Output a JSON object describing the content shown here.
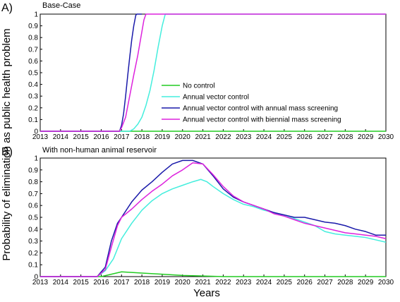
{
  "figure": {
    "ylabel": "Probability of elimination as public health problem",
    "xlabel": "Years"
  },
  "chart_data": [
    {
      "type": "line",
      "panel_label": "A)",
      "title": "Base-Case",
      "xlim": [
        2013,
        2030
      ],
      "ylim": [
        0,
        1
      ],
      "x_ticks": [
        "2013",
        "2014",
        "2015",
        "2016",
        "2017",
        "2018",
        "2019",
        "2020",
        "2021",
        "2022",
        "2023",
        "2024",
        "2025",
        "2026",
        "2027",
        "2028",
        "2029",
        "2030"
      ],
      "y_ticks": [
        "0",
        "0.1",
        "0.2",
        "0.3",
        "0.4",
        "0.5",
        "0.6",
        "0.7",
        "0.8",
        "0.9",
        "1"
      ],
      "grid": false,
      "legend": "center-right",
      "series": [
        {
          "name": "No control",
          "color": "#22cc22",
          "x": [
            2013,
            2030
          ],
          "y": [
            0,
            0
          ]
        },
        {
          "name": "Annual vector control",
          "color": "#44eedd",
          "x": [
            2013,
            2017.4,
            2017.6,
            2017.8,
            2018.0,
            2018.2,
            2018.4,
            2018.6,
            2018.8,
            2019.0,
            2019.15,
            2019.2,
            2030
          ],
          "y": [
            0,
            0,
            0.02,
            0.06,
            0.12,
            0.22,
            0.35,
            0.52,
            0.72,
            0.9,
            1.0,
            1.0,
            1.0
          ]
        },
        {
          "name": "Annual vector control with annual mass screening",
          "color": "#1a1aaa",
          "x": [
            2013,
            2016.9,
            2017.0,
            2017.1,
            2017.2,
            2017.3,
            2017.4,
            2017.5,
            2017.6,
            2017.7,
            2017.75,
            2018.0
          ],
          "y": [
            0,
            0,
            0.05,
            0.15,
            0.3,
            0.47,
            0.63,
            0.78,
            0.9,
            0.99,
            1.0,
            1.0
          ]
        },
        {
          "name": "Annual vector control with biennial mass screening",
          "color": "#dd22dd",
          "x": [
            2013,
            2016.9,
            2017.0,
            2017.2,
            2017.4,
            2017.6,
            2017.8,
            2018.0,
            2018.1,
            2018.2,
            2030
          ],
          "y": [
            0,
            0,
            0.03,
            0.12,
            0.3,
            0.48,
            0.65,
            0.85,
            0.95,
            1.0,
            1.0
          ]
        }
      ]
    },
    {
      "type": "line",
      "panel_label": "B)",
      "title": "With non-human animal reservoir",
      "xlim": [
        2013,
        2030
      ],
      "ylim": [
        0,
        1
      ],
      "x_ticks": [
        "2013",
        "2014",
        "2015",
        "2016",
        "2017",
        "2018",
        "2019",
        "2020",
        "2021",
        "2022",
        "2023",
        "2024",
        "2025",
        "2026",
        "2027",
        "2028",
        "2029",
        "2030"
      ],
      "y_ticks": [
        "0",
        "0.1",
        "0.2",
        "0.3",
        "0.4",
        "0.5",
        "0.6",
        "0.7",
        "0.8",
        "0.9",
        "1"
      ],
      "grid": false,
      "legend": "none",
      "series": [
        {
          "name": "No control",
          "color": "#22cc22",
          "x": [
            2013,
            2016.0,
            2016.5,
            2017.0,
            2017.5,
            2018.0,
            2019.0,
            2020.0,
            2021.0,
            2022.0,
            2030
          ],
          "y": [
            0,
            0,
            0.02,
            0.04,
            0.035,
            0.03,
            0.02,
            0.01,
            0.005,
            0.0,
            0.0
          ]
        },
        {
          "name": "Annual vector control",
          "color": "#44eedd",
          "x": [
            2013,
            2015.8,
            2016.2,
            2016.6,
            2017.0,
            2017.5,
            2018.0,
            2018.5,
            2019.0,
            2019.5,
            2020.0,
            2020.5,
            2020.9,
            2021.2,
            2021.5,
            2022.0,
            2022.5,
            2023.0,
            2023.5,
            2024.0,
            2024.5,
            2025.0,
            2025.5,
            2026.0,
            2026.5,
            2027.0,
            2027.5,
            2028.0,
            2028.5,
            2029.0,
            2029.5,
            2030.0
          ],
          "y": [
            0,
            0,
            0.05,
            0.15,
            0.32,
            0.45,
            0.56,
            0.64,
            0.7,
            0.74,
            0.77,
            0.8,
            0.82,
            0.8,
            0.76,
            0.7,
            0.65,
            0.61,
            0.59,
            0.56,
            0.54,
            0.51,
            0.49,
            0.46,
            0.43,
            0.38,
            0.36,
            0.35,
            0.34,
            0.33,
            0.31,
            0.29
          ]
        },
        {
          "name": "Annual vector control with annual mass screening",
          "color": "#1a1aaa",
          "x": [
            2013,
            2015.8,
            2016.2,
            2016.5,
            2016.8,
            2017.0,
            2017.5,
            2018.0,
            2018.5,
            2019.0,
            2019.5,
            2020.0,
            2020.5,
            2021.0,
            2021.5,
            2022.0,
            2022.5,
            2023.0,
            2023.5,
            2024.0,
            2024.5,
            2025.0,
            2025.5,
            2026.0,
            2026.5,
            2027.0,
            2027.5,
            2028.0,
            2028.5,
            2029.0,
            2029.5,
            2030.0
          ],
          "y": [
            0,
            0,
            0.08,
            0.3,
            0.45,
            0.5,
            0.63,
            0.73,
            0.8,
            0.88,
            0.95,
            0.98,
            0.98,
            0.95,
            0.85,
            0.74,
            0.67,
            0.63,
            0.6,
            0.57,
            0.54,
            0.52,
            0.5,
            0.5,
            0.48,
            0.46,
            0.45,
            0.43,
            0.4,
            0.38,
            0.35,
            0.35
          ]
        },
        {
          "name": "Annual vector control with biennial mass screening",
          "color": "#dd22dd",
          "x": [
            2013,
            2015.8,
            2016.2,
            2016.5,
            2016.8,
            2017.0,
            2017.5,
            2018.0,
            2018.5,
            2019.0,
            2019.5,
            2020.0,
            2020.5,
            2021.0,
            2021.5,
            2022.0,
            2022.5,
            2023.0,
            2023.5,
            2024.0,
            2024.5,
            2025.0,
            2025.5,
            2026.0,
            2026.5,
            2027.0,
            2027.5,
            2028.0,
            2028.5,
            2029.0,
            2029.5,
            2030.0
          ],
          "y": [
            0,
            0,
            0.06,
            0.25,
            0.43,
            0.5,
            0.57,
            0.65,
            0.72,
            0.78,
            0.85,
            0.9,
            0.96,
            0.95,
            0.86,
            0.76,
            0.68,
            0.63,
            0.6,
            0.57,
            0.53,
            0.51,
            0.48,
            0.45,
            0.43,
            0.41,
            0.39,
            0.37,
            0.36,
            0.35,
            0.34,
            0.32
          ]
        }
      ]
    }
  ]
}
